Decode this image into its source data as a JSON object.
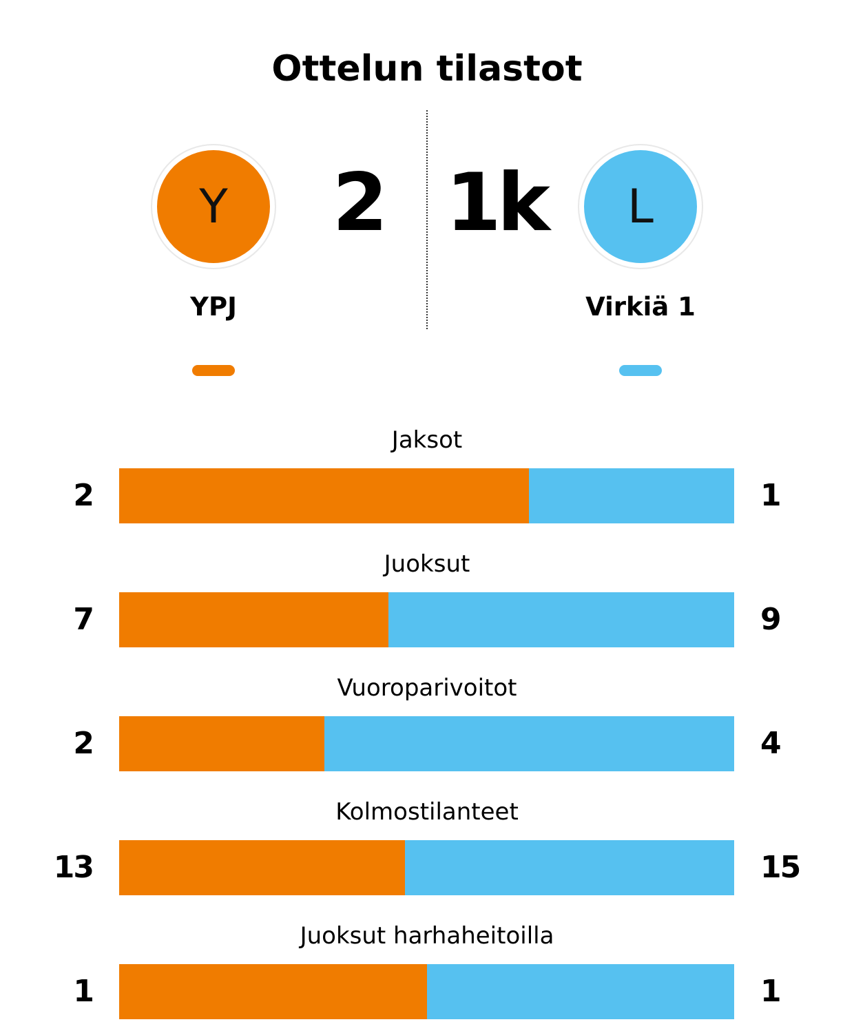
{
  "title": "Ottelun tilastot",
  "colors": {
    "home": "#F07C00",
    "away": "#56C1F0"
  },
  "home": {
    "initial": "Y",
    "score": "2",
    "name": "YPJ"
  },
  "away": {
    "initial": "L",
    "score": "1k",
    "name": "Virkiä 1"
  },
  "chart_data": {
    "type": "bar",
    "orientation": "horizontal",
    "stacked": "normalized",
    "categories": [
      "Jaksot",
      "Juoksut",
      "Vuoroparivoitot",
      "Kolmostilanteet",
      "Juoksut harhaheitoilla"
    ],
    "series": [
      {
        "name": "YPJ",
        "values": [
          2,
          7,
          2,
          13,
          1
        ]
      },
      {
        "name": "Virkiä 1",
        "values": [
          1,
          9,
          4,
          15,
          1
        ]
      }
    ]
  }
}
